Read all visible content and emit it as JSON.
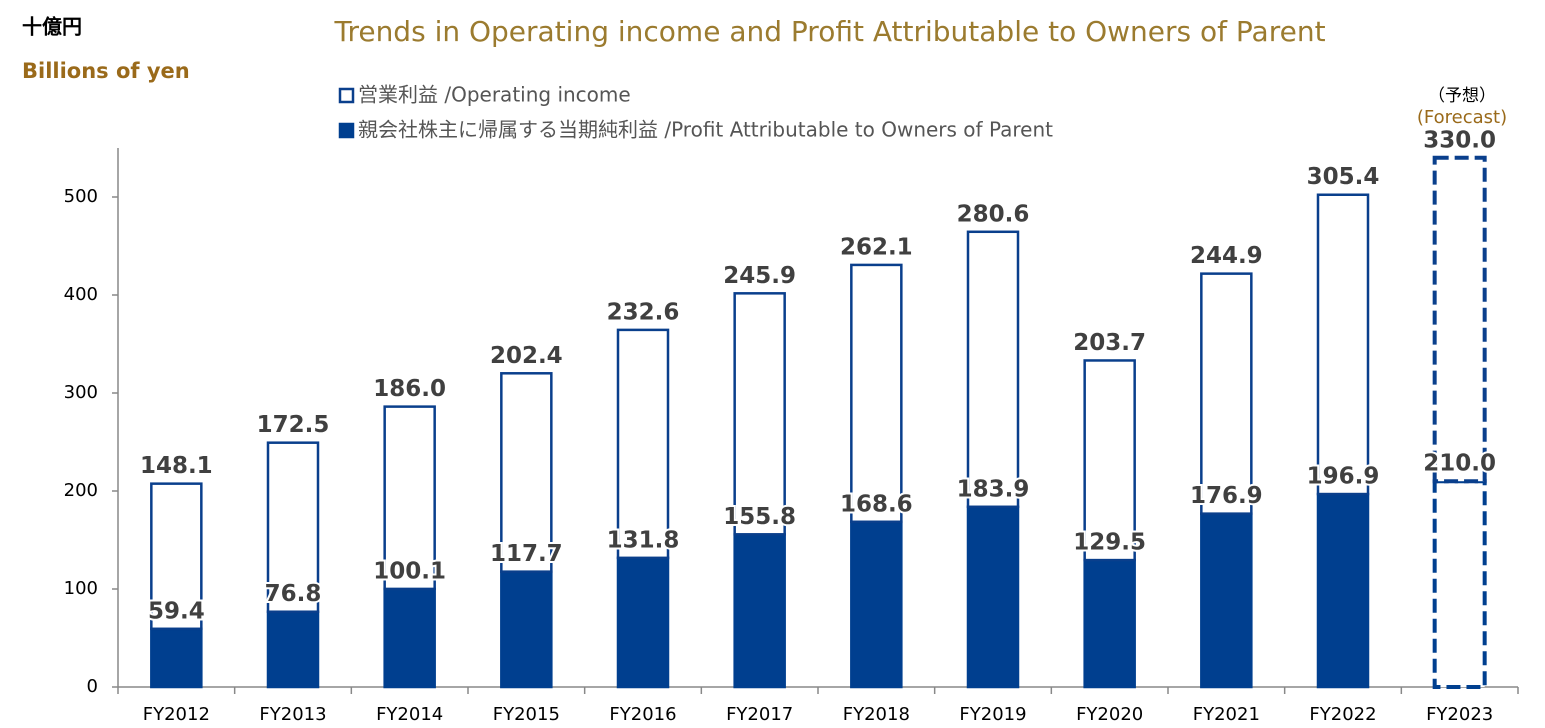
{
  "chart_data": {
    "type": "stacked_bar",
    "title": "Trends in Operating income and Profit Attributable to Owners of Parent",
    "unit_ja": "十億円",
    "unit_en": "Billions of yen",
    "categories": [
      "FY2012",
      "FY2013",
      "FY2014",
      "FY2015",
      "FY2016",
      "FY2017",
      "FY2018",
      "FY2019",
      "FY2020",
      "FY2021",
      "FY2022",
      "FY2023"
    ],
    "series": [
      {
        "name": "親会社株主に帰属する当期純利益 /Profit Attributable to Owners of Parent",
        "color": "#003f8f",
        "fill": "solid",
        "values": [
          59.4,
          76.8,
          100.1,
          117.7,
          131.8,
          155.8,
          168.6,
          183.9,
          129.5,
          176.9,
          196.9,
          210.0
        ],
        "value_labels": [
          "59.4",
          "76.8",
          "100.1",
          "117.7",
          "131.8",
          "155.8",
          "168.6",
          "183.9",
          "129.5",
          "176.9",
          "196.9",
          "210.0"
        ]
      },
      {
        "name": "営業利益 /Operating income",
        "color": "#0a3f8c",
        "fill": "hollow",
        "values": [
          148.1,
          172.5,
          186.0,
          202.4,
          232.6,
          245.9,
          262.1,
          280.6,
          203.7,
          244.9,
          305.4,
          330.0
        ],
        "value_labels": [
          "148.1",
          "172.5",
          "186.0",
          "202.4",
          "232.6",
          "245.9",
          "262.1",
          "280.6",
          "203.7",
          "244.9",
          "305.4",
          "330.0"
        ]
      }
    ],
    "forecast": {
      "label_ja": "（予想）",
      "label_en": "(Forecast)",
      "categories": [
        "FY2023"
      ]
    },
    "ylim": [
      0,
      550
    ],
    "yticks": [
      0,
      100,
      200,
      300,
      400,
      500
    ],
    "grid": false
  }
}
